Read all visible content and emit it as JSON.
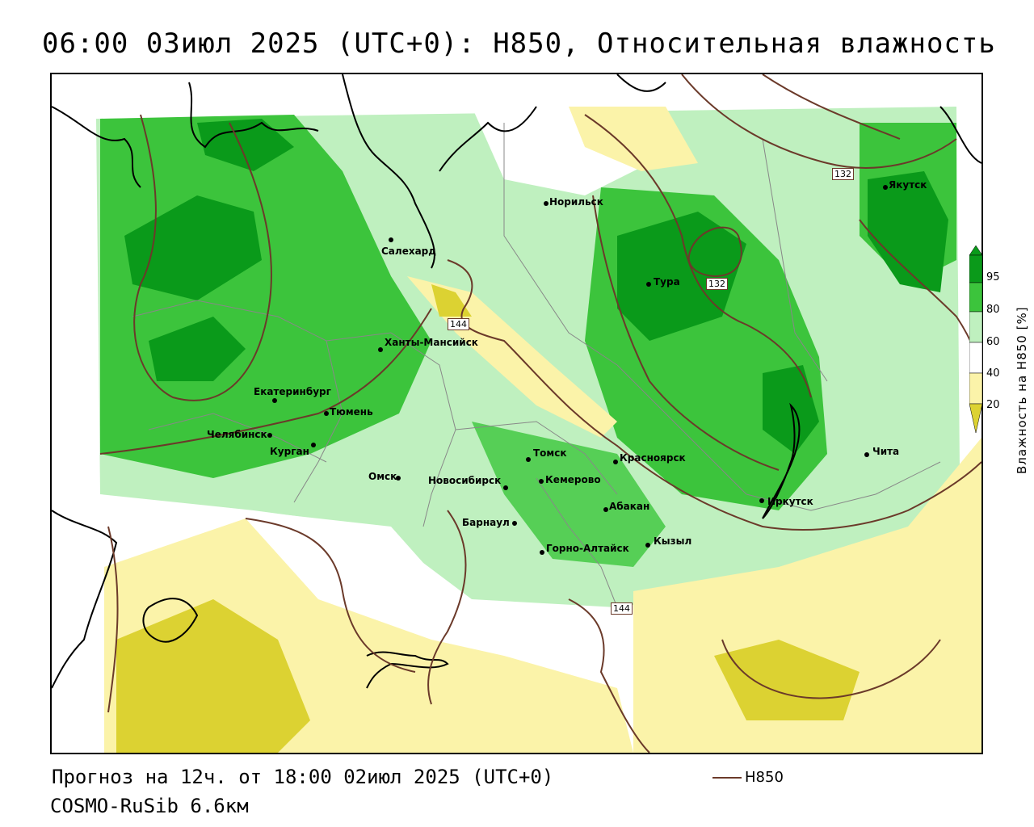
{
  "header": {
    "title": "06:00 03июл 2025 (UTC+0): H850, Относительная влажность"
  },
  "footer": {
    "forecast": "Прогноз на 12ч. от 18:00 02июл 2025 (UTC+0)",
    "model": "COSMO-RuSib 6.6км",
    "legend_label": "H850",
    "legend_color": "#6b3a2a"
  },
  "colorbar": {
    "title": "Влажность на H850 [%]",
    "ticks": [
      "95",
      "80",
      "60",
      "40",
      "20"
    ],
    "colors": {
      "dark_green": "#0a9a1a",
      "green": "#3cc43c",
      "light_green": "#bff0bf",
      "white": "#ffffff",
      "light_yellow": "#fbf3a9",
      "yellow": "#dcd232"
    }
  },
  "map": {
    "cities": [
      {
        "name": "Норильск"
      },
      {
        "name": "Якутск"
      },
      {
        "name": "Салехард"
      },
      {
        "name": "Тура"
      },
      {
        "name": "Ханты-Мансийск"
      },
      {
        "name": "Екатеринбург"
      },
      {
        "name": "Тюмень"
      },
      {
        "name": "Челябинск"
      },
      {
        "name": "Курган"
      },
      {
        "name": "Омск"
      },
      {
        "name": "Новосибирск"
      },
      {
        "name": "Томск"
      },
      {
        "name": "Кемерово"
      },
      {
        "name": "Красноярск"
      },
      {
        "name": "Абакан"
      },
      {
        "name": "Барнаул"
      },
      {
        "name": "Горно-Алтайск"
      },
      {
        "name": "Кызыл"
      },
      {
        "name": "Иркутск"
      },
      {
        "name": "Чита"
      }
    ],
    "contour_labels": [
      "132",
      "132",
      "144",
      "144"
    ]
  }
}
